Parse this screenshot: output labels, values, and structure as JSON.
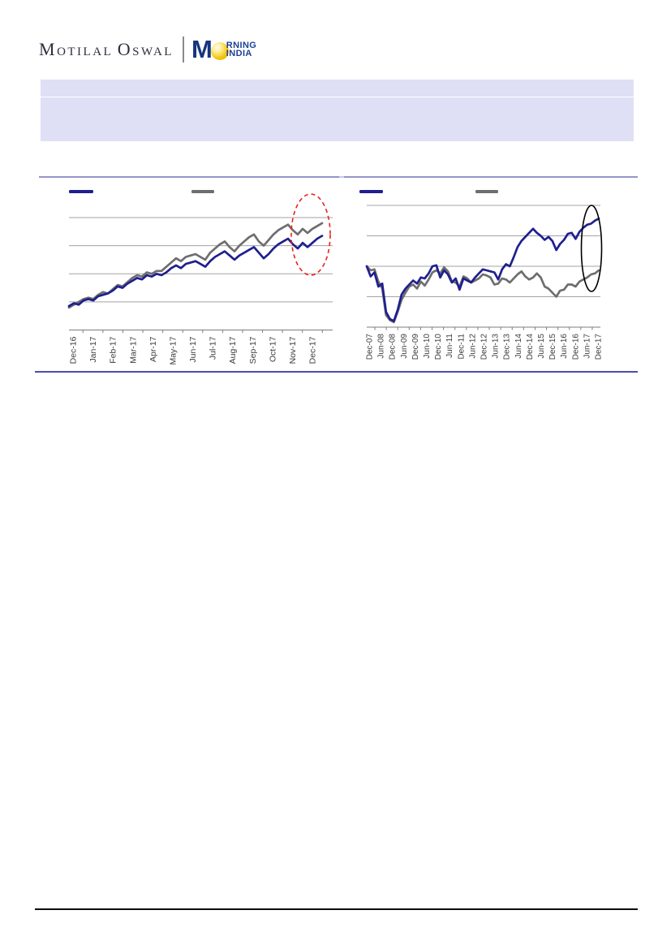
{
  "logo": {
    "brand_m1": "M",
    "brand_rest1": "OTILAL",
    "brand_m2": "O",
    "brand_rest2": "SWAL",
    "product_m": "M",
    "product_top": "RNING",
    "product_bottom": "INDIA",
    "brand_color": "#2e2e3c",
    "product_color": "#1c3f94",
    "sun_color": "#f4c50f"
  },
  "banner": {
    "bg_color": "#dfdff6",
    "title_text": "",
    "body_text": ""
  },
  "rules": {
    "chart_section_top_color": "#9494c9",
    "chart_section_bottom_color": "#4c4caf",
    "page_bottom_color": "#0c0c0c"
  },
  "chart_data": [
    {
      "type": "line",
      "title": "",
      "position": "left",
      "x_labels": [
        "Dec-16",
        "Jan-17",
        "Feb-17",
        "Mar-17",
        "Apr-17",
        "May-17",
        "Jun-17",
        "Jul-17",
        "Aug-17",
        "Sep-17",
        "Oct-17",
        "Nov-17",
        "Dec-17"
      ],
      "xlabel": "",
      "ylabel": "",
      "y_tick_labels_visible": false,
      "grid": true,
      "gridline_values": [
        90,
        100,
        110,
        120,
        130
      ],
      "ylim": [
        88,
        134
      ],
      "legend_position": "top",
      "legend": [
        {
          "name": "blue-series",
          "color": "#1f1f8f",
          "label": ""
        },
        {
          "name": "gray-series",
          "color": "#6e6e6e",
          "label": ""
        }
      ],
      "series": [
        {
          "name": "gray-series",
          "color": "#6e6e6e",
          "values": [
            98.0,
            99.0,
            100.0,
            101.0,
            101.5,
            101.0,
            102.5,
            103.5,
            103.0,
            104.5,
            106.0,
            105.5,
            107.0,
            108.5,
            109.5,
            109.0,
            110.5,
            110.0,
            111.0,
            111.0,
            112.5,
            114.0,
            115.5,
            114.5,
            116.0,
            116.5,
            117.0,
            116.0,
            115.0,
            117.5,
            119.0,
            120.5,
            121.5,
            119.5,
            118.0,
            120.0,
            121.5,
            123.0,
            124.0,
            121.5,
            120.0,
            122.0,
            124.0,
            125.5,
            126.5,
            127.5,
            125.5,
            124.0,
            126.0,
            124.5,
            126.0,
            127.0,
            128.0
          ]
        },
        {
          "name": "blue-series",
          "color": "#1f1f8f",
          "values": [
            98.5,
            99.5,
            99.0,
            100.5,
            101.0,
            100.5,
            102.0,
            102.5,
            103.0,
            104.0,
            105.5,
            105.0,
            106.5,
            107.5,
            108.5,
            108.0,
            109.5,
            109.0,
            110.0,
            109.5,
            110.5,
            112.0,
            113.0,
            112.0,
            113.5,
            114.0,
            114.5,
            113.5,
            112.5,
            114.5,
            116.0,
            117.0,
            118.0,
            116.5,
            115.0,
            116.5,
            117.5,
            118.5,
            119.5,
            117.5,
            115.5,
            117.0,
            119.0,
            120.5,
            121.5,
            122.5,
            120.5,
            119.0,
            121.0,
            119.5,
            121.0,
            122.5,
            123.5
          ]
        }
      ],
      "annotation": {
        "type": "ellipse",
        "stroke": "#e8211b",
        "dashed": true,
        "area": "right-end-of-lines"
      }
    },
    {
      "type": "line",
      "title": "",
      "position": "right",
      "x_labels": [
        "Dec-07",
        "Jun-08",
        "Dec-08",
        "Jun-09",
        "Dec-09",
        "Jun-10",
        "Dec-10",
        "Jun-11",
        "Dec-11",
        "Jun-12",
        "Dec-12",
        "Jun-13",
        "Dec-13",
        "Jun-14",
        "Dec-14",
        "Jun-15",
        "Dec-15",
        "Jun-16",
        "Dec-16",
        "Jun-17",
        "Dec-17"
      ],
      "xlabel": "",
      "ylabel": "",
      "y_tick_labels_visible": false,
      "grid": true,
      "gridline_values": [
        40,
        70,
        100,
        130,
        160
      ],
      "ylim": [
        40,
        162
      ],
      "legend_position": "top",
      "legend": [
        {
          "name": "blue-series",
          "color": "#1f1f8f",
          "label": ""
        },
        {
          "name": "gray-series",
          "color": "#6e6e6e",
          "label": ""
        }
      ],
      "series": [
        {
          "name": "gray-series",
          "color": "#6e6e6e",
          "values": [
            100,
            96,
            97,
            85,
            78,
            52,
            47,
            45,
            55,
            67,
            74,
            80,
            82,
            78,
            85,
            81,
            87,
            94,
            96,
            93,
            99,
            95,
            85,
            84,
            80,
            90,
            88,
            84,
            86,
            88,
            92,
            91,
            89,
            82,
            83,
            88,
            87,
            84,
            88,
            92,
            95,
            90,
            87,
            89,
            93,
            89,
            80,
            78,
            74,
            70,
            76,
            77,
            82,
            82,
            80,
            85,
            87,
            89,
            92,
            93,
            96
          ]
        },
        {
          "name": "blue-series",
          "color": "#1f1f8f",
          "values": [
            100,
            90,
            94,
            80,
            83,
            55,
            48,
            46,
            57,
            72,
            78,
            82,
            86,
            83,
            89,
            88,
            93,
            100,
            101,
            89,
            96,
            92,
            84,
            88,
            77,
            88,
            86,
            84,
            89,
            93,
            97,
            96,
            95,
            94,
            87,
            97,
            102,
            100,
            109,
            119,
            125,
            129,
            133,
            137,
            133,
            130,
            126,
            129,
            125,
            116,
            122,
            126,
            132,
            133,
            127,
            134,
            138,
            141,
            142,
            145,
            147
          ]
        }
      ],
      "annotation": {
        "type": "ellipse",
        "stroke": "#000000",
        "dashed": false,
        "area": "right-end-of-lines"
      }
    }
  ]
}
